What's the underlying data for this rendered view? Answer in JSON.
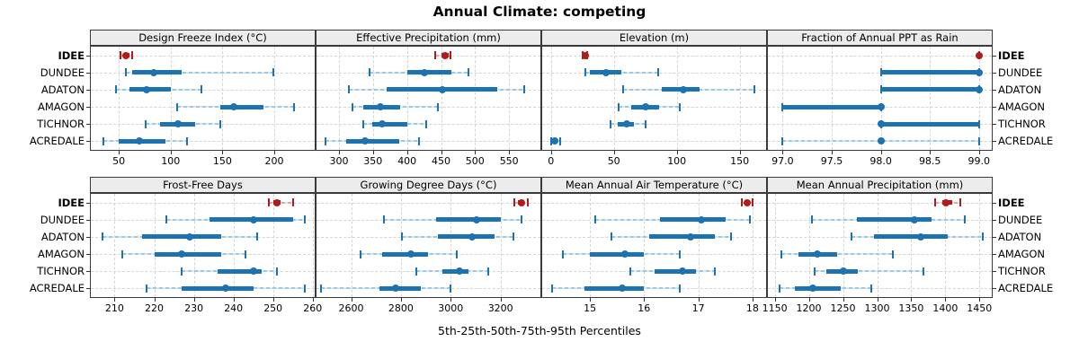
{
  "title": "Annual Climate: competing",
  "caption": "5th-25th-50th-75th-95th Percentiles",
  "colors": {
    "highlight_main": "#b01c1c",
    "highlight_light": "#dda8a8",
    "highlight_lighter": "#f2dcdc",
    "normal_main": "#1d72b0",
    "normal_light": "#9ec8e2",
    "normal_lighter": "#d9e9f4",
    "strip_bg": "#ececec",
    "panel_border": "#3a3a3a",
    "grid": "#d4d4d4"
  },
  "chart_data": {
    "type": "percentile-dotplot",
    "percentiles": [
      "5th",
      "25th",
      "50th",
      "75th",
      "95th"
    ],
    "sites": [
      "IDEE",
      "DUNDEE",
      "ADATON",
      "AMAGON",
      "TICHNOR",
      "ACREDALE"
    ],
    "highlight_site": "IDEE",
    "legend_position": "none",
    "grid": true,
    "rows": [
      {
        "panels": [
          {
            "title": "Design Freeze Index (°C)",
            "xlim": [
              23,
              239
            ],
            "tick_values": [
              50,
              100,
              150,
              200
            ],
            "tick_labels": [
              "50",
              "100",
              "150",
              "200"
            ],
            "series": [
              {
                "site": "IDEE",
                "p": [
                  52,
                  55,
                  57,
                  60,
                  63
                ]
              },
              {
                "site": "DUNDEE",
                "p": [
                  57,
                  63,
                  84,
                  111,
                  199
                ]
              },
              {
                "site": "ADATON",
                "p": [
                  47,
                  60,
                  77,
                  100,
                  130
                ]
              },
              {
                "site": "AMAGON",
                "p": [
                  106,
                  148,
                  161,
                  190,
                  219
                ]
              },
              {
                "site": "TICHNOR",
                "p": [
                  76,
                  90,
                  107,
                  124,
                  148
                ]
              },
              {
                "site": "ACREDALE",
                "p": [
                  35,
                  50,
                  70,
                  95,
                  116
                ]
              }
            ]
          },
          {
            "title": "Effective Precipitation (mm)",
            "xlim": [
              267,
              596
            ],
            "tick_values": [
              300,
              350,
              400,
              450,
              500,
              550
            ],
            "tick_labels": [
              "300",
              "350",
              "400",
              "450",
              "500",
              "550"
            ],
            "series": [
              {
                "site": "IDEE",
                "p": [
                  441,
                  450,
                  456,
                  461,
                  464
                ]
              },
              {
                "site": "DUNDEE",
                "p": [
                  345,
                  400,
                  426,
                  465,
                  490
                ]
              },
              {
                "site": "ADATON",
                "p": [
                  315,
                  370,
                  452,
                  532,
                  572
                ]
              },
              {
                "site": "AMAGON",
                "p": [
                  320,
                  336,
                  361,
                  390,
                  445
                ]
              },
              {
                "site": "TICHNOR",
                "p": [
                  335,
                  349,
                  364,
                  400,
                  428
                ]
              },
              {
                "site": "ACREDALE",
                "p": [
                  280,
                  311,
                  338,
                  388,
                  417
                ]
              }
            ]
          },
          {
            "title": "Elevation (m)",
            "xlim": [
              -7,
              171
            ],
            "tick_values": [
              0,
              50,
              100,
              150
            ],
            "tick_labels": [
              "0",
              "50",
              "100",
              "150"
            ],
            "series": [
              {
                "site": "IDEE",
                "p": [
                  25,
                  26,
                  27,
                  28,
                  29
                ]
              },
              {
                "site": "DUNDEE",
                "p": [
                  27,
                  31,
                  44,
                  56,
                  85
                ]
              },
              {
                "site": "ADATON",
                "p": [
                  57,
                  88,
                  105,
                  118,
                  162
                ]
              },
              {
                "site": "AMAGON",
                "p": [
                  54,
                  64,
                  75,
                  86,
                  102
                ]
              },
              {
                "site": "TICHNOR",
                "p": [
                  47,
                  53,
                  60,
                  66,
                  75
                ]
              },
              {
                "site": "ACREDALE",
                "p": [
                  0,
                  1,
                  3,
                  4,
                  7
                ]
              }
            ]
          },
          {
            "title": "Fraction of Annual PPT as Rain",
            "xlim": [
              96.85,
              99.13
            ],
            "tick_values": [
              97,
              97.5,
              98,
              98.5,
              99
            ],
            "tick_labels": [
              "97.0",
              "97.5",
              "98.0",
              "98.5",
              "99.0"
            ],
            "series": [
              {
                "site": "IDEE",
                "p": [
                  99,
                  99,
                  99,
                  99,
                  99
                ]
              },
              {
                "site": "DUNDEE",
                "p": [
                  98,
                  98,
                  99,
                  99,
                  99
                ]
              },
              {
                "site": "ADATON",
                "p": [
                  98,
                  98,
                  99,
                  99,
                  99
                ]
              },
              {
                "site": "AMAGON",
                "p": [
                  97,
                  97,
                  98,
                  98,
                  98
                ]
              },
              {
                "site": "TICHNOR",
                "p": [
                  98,
                  98,
                  98,
                  99,
                  99
                ]
              },
              {
                "site": "ACREDALE",
                "p": [
                  97,
                  98,
                  98,
                  98,
                  99
                ]
              }
            ]
          }
        ]
      },
      {
        "panels": [
          {
            "title": "Frost-Free Days",
            "xlim": [
              204,
              260.5
            ],
            "tick_values": [
              210,
              220,
              230,
              240,
              250,
              260
            ],
            "tick_labels": [
              "210",
              "220",
              "230",
              "240",
              "250",
              "260"
            ],
            "series": [
              {
                "site": "IDEE",
                "p": [
                  249,
                  250,
                  251,
                  252,
                  255
                ]
              },
              {
                "site": "DUNDEE",
                "p": [
                  223,
                  234,
                  245,
                  255,
                  258
                ]
              },
              {
                "site": "ADATON",
                "p": [
                  207,
                  217,
                  229,
                  237,
                  246
                ]
              },
              {
                "site": "AMAGON",
                "p": [
                  212,
                  220,
                  227,
                  237,
                  243
                ]
              },
              {
                "site": "TICHNOR",
                "p": [
                  227,
                  236,
                  245,
                  247,
                  251
                ]
              },
              {
                "site": "ACREDALE",
                "p": [
                  218,
                  227,
                  238,
                  245,
                  258
                ]
              }
            ]
          },
          {
            "title": "Growing Degree Days (°C)",
            "xlim": [
              2461,
              3360
            ],
            "tick_values": [
              2600,
              2800,
              3000,
              3200
            ],
            "tick_labels": [
              "2600",
              "2800",
              "3000",
              "3200"
            ],
            "series": [
              {
                "site": "IDEE",
                "p": [
                  3255,
                  3270,
                  3283,
                  3295,
                  3310
                ]
              },
              {
                "site": "DUNDEE",
                "p": [
                  2732,
                  2940,
                  3105,
                  3200,
                  3285
                ]
              },
              {
                "site": "ADATON",
                "p": [
                  2805,
                  2950,
                  3085,
                  3175,
                  3250
                ]
              },
              {
                "site": "AMAGON",
                "p": [
                  2637,
                  2726,
                  2840,
                  2910,
                  3025
                ]
              },
              {
                "site": "TICHNOR",
                "p": [
                  2860,
                  2965,
                  3035,
                  3070,
                  3150
                ]
              },
              {
                "site": "ACREDALE",
                "p": [
                  2480,
                  2715,
                  2780,
                  2880,
                  3000
                ]
              }
            ]
          },
          {
            "title": "Mean Annual Air Temperature (°C)",
            "xlim": [
              14.12,
              18.25
            ],
            "tick_values": [
              15,
              16,
              17,
              18
            ],
            "tick_labels": [
              "15",
              "16",
              "17",
              "18"
            ],
            "series": [
              {
                "site": "IDEE",
                "p": [
                  17.8,
                  17.85,
                  17.9,
                  17.95,
                  18.0
                ]
              },
              {
                "site": "DUNDEE",
                "p": [
                  15.1,
                  16.3,
                  17.05,
                  17.5,
                  17.95
                ]
              },
              {
                "site": "ADATON",
                "p": [
                  15.4,
                  16.1,
                  16.85,
                  17.3,
                  17.6
                ]
              },
              {
                "site": "AMAGON",
                "p": [
                  14.5,
                  15.0,
                  15.65,
                  16.0,
                  16.65
                ]
              },
              {
                "site": "TICHNOR",
                "p": [
                  15.75,
                  16.2,
                  16.7,
                  16.95,
                  17.3
                ]
              },
              {
                "site": "ACREDALE",
                "p": [
                  14.3,
                  14.9,
                  15.6,
                  16.0,
                  16.65
                ]
              }
            ]
          },
          {
            "title": "Mean Annual Precipitation (mm)",
            "xlim": [
              1140,
              1468
            ],
            "tick_values": [
              1150,
              1200,
              1250,
              1300,
              1350,
              1400,
              1450
            ],
            "tick_labels": [
              "1150",
              "1200",
              "1250",
              "1300",
              "1350",
              "1400",
              "1450"
            ],
            "series": [
              {
                "site": "IDEE",
                "p": [
                  1385,
                  1395,
                  1401,
                  1410,
                  1422
                ]
              },
              {
                "site": "DUNDEE",
                "p": [
                  1205,
                  1270,
                  1355,
                  1380,
                  1428
                ]
              },
              {
                "site": "ADATON",
                "p": [
                  1263,
                  1295,
                  1364,
                  1403,
                  1455
                ]
              },
              {
                "site": "AMAGON",
                "p": [
                  1160,
                  1185,
                  1213,
                  1242,
                  1323
                ]
              },
              {
                "site": "TICHNOR",
                "p": [
                  1208,
                  1225,
                  1251,
                  1272,
                  1368
                ]
              },
              {
                "site": "ACREDALE",
                "p": [
                  1157,
                  1180,
                  1206,
                  1247,
                  1291
                ]
              }
            ]
          }
        ]
      }
    ]
  }
}
